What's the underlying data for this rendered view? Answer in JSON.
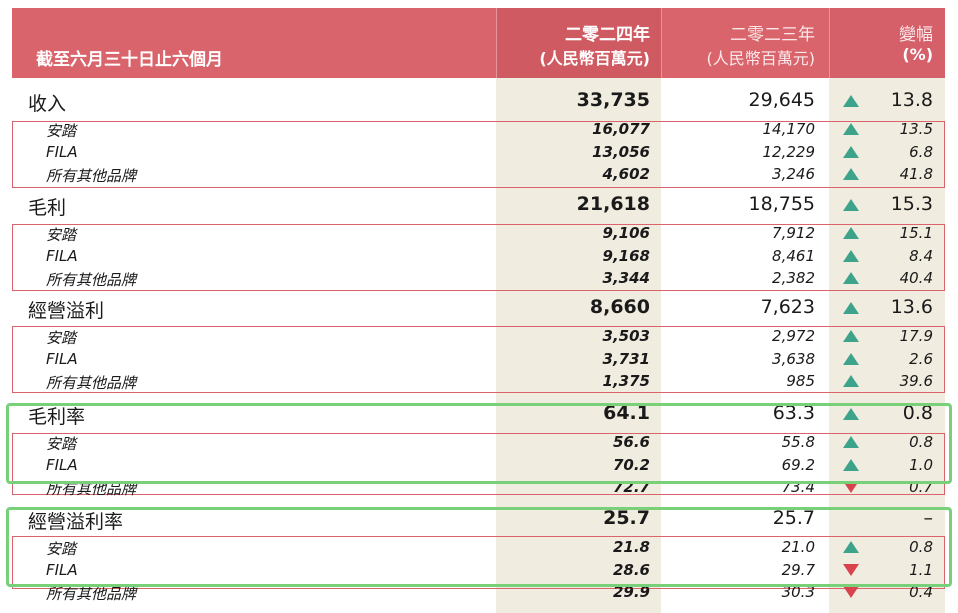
{
  "header": {
    "period": "截至六月三十日止六個月",
    "col2024_line1": "二零二四年",
    "col2024_line2": "(人民幣百萬元)",
    "col2023_line1": "二零二三年",
    "col2023_line2": "(人民幣百萬元)",
    "change_line1": "變幅",
    "change_line2": "(%)"
  },
  "sections": [
    {
      "label": "收入",
      "v2024": "33,735",
      "v2023": "29,645",
      "change": "13.8",
      "dir": "up",
      "rows": [
        {
          "label": "安踏",
          "v2024": "16,077",
          "v2023": "14,170",
          "change": "13.5",
          "dir": "up"
        },
        {
          "label": "FILA",
          "v2024": "13,056",
          "v2023": "12,229",
          "change": "6.8",
          "dir": "up"
        },
        {
          "label": "所有其他品牌",
          "v2024": "4,602",
          "v2023": "3,246",
          "change": "41.8",
          "dir": "up"
        }
      ]
    },
    {
      "label": "毛利",
      "v2024": "21,618",
      "v2023": "18,755",
      "change": "15.3",
      "dir": "up",
      "rows": [
        {
          "label": "安踏",
          "v2024": "9,106",
          "v2023": "7,912",
          "change": "15.1",
          "dir": "up"
        },
        {
          "label": "FILA",
          "v2024": "9,168",
          "v2023": "8,461",
          "change": "8.4",
          "dir": "up"
        },
        {
          "label": "所有其他品牌",
          "v2024": "3,344",
          "v2023": "2,382",
          "change": "40.4",
          "dir": "up"
        }
      ]
    },
    {
      "label": "經營溢利",
      "v2024": "8,660",
      "v2023": "7,623",
      "change": "13.6",
      "dir": "up",
      "rows": [
        {
          "label": "安踏",
          "v2024": "3,503",
          "v2023": "2,972",
          "change": "17.9",
          "dir": "up"
        },
        {
          "label": "FILA",
          "v2024": "3,731",
          "v2023": "3,638",
          "change": "2.6",
          "dir": "up"
        },
        {
          "label": "所有其他品牌",
          "v2024": "1,375",
          "v2023": "985",
          "change": "39.6",
          "dir": "up"
        }
      ]
    },
    {
      "label": "毛利率",
      "v2024": "64.1",
      "v2023": "63.3",
      "change": "0.8",
      "dir": "up",
      "rows": [
        {
          "label": "安踏",
          "v2024": "56.6",
          "v2023": "55.8",
          "change": "0.8",
          "dir": "up"
        },
        {
          "label": "FILA",
          "v2024": "70.2",
          "v2023": "69.2",
          "change": "1.0",
          "dir": "up"
        },
        {
          "label": "所有其他品牌",
          "v2024": "72.7",
          "v2023": "73.4",
          "change": "0.7",
          "dir": "down"
        }
      ]
    },
    {
      "label": "經營溢利率",
      "v2024": "25.7",
      "v2023": "25.7",
      "change": "–",
      "dir": "none",
      "rows": [
        {
          "label": "安踏",
          "v2024": "21.8",
          "v2023": "21.0",
          "change": "0.8",
          "dir": "up"
        },
        {
          "label": "FILA",
          "v2024": "28.6",
          "v2023": "29.7",
          "change": "1.1",
          "dir": "down"
        },
        {
          "label": "所有其他品牌",
          "v2024": "29.9",
          "v2023": "30.3",
          "change": "0.4",
          "dir": "down"
        }
      ]
    }
  ],
  "colors": {
    "header_bg": "#d9646b",
    "column_shade": "#f1ece0",
    "up_arrow": "#3da38a",
    "down_arrow": "#d9434e",
    "highlight_box": "#78d078"
  }
}
